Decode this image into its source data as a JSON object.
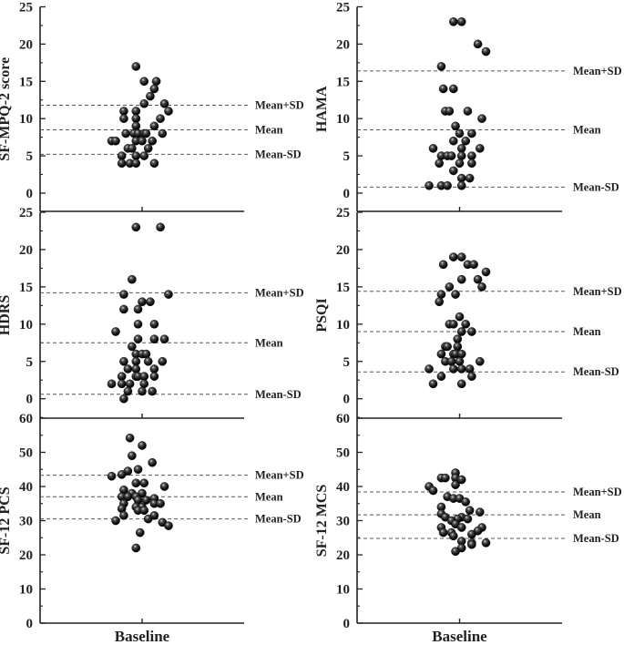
{
  "chart_data": [
    {
      "type": "scatter",
      "title": "",
      "ylabel": "SF-MPQ-2 score",
      "xlabel": "Baseline",
      "ylim": [
        -2.45,
        25
      ],
      "yticks": [
        0,
        5,
        10,
        15,
        20,
        25
      ],
      "ref_lines": [
        {
          "label": "Mean+SD",
          "value": 11.8
        },
        {
          "label": "Mean",
          "value": 8.5
        },
        {
          "label": "Mean-SD",
          "value": 5.2
        }
      ],
      "points": [
        [
          -0.03,
          17
        ],
        [
          0.01,
          15
        ],
        [
          0.07,
          15
        ],
        [
          0.06,
          14
        ],
        [
          0.04,
          13
        ],
        [
          0.01,
          12
        ],
        [
          0.11,
          12
        ],
        [
          -0.09,
          11
        ],
        [
          -0.03,
          11
        ],
        [
          0.13,
          11
        ],
        [
          -0.09,
          10
        ],
        [
          -0.03,
          10
        ],
        [
          0.09,
          10
        ],
        [
          -0.03,
          9
        ],
        [
          0.06,
          9
        ],
        [
          -0.08,
          8
        ],
        [
          -0.04,
          8
        ],
        [
          -0.02,
          8
        ],
        [
          0.01,
          8
        ],
        [
          0.02,
          8
        ],
        [
          0.1,
          8
        ],
        [
          -0.15,
          7
        ],
        [
          -0.13,
          7
        ],
        [
          -0.03,
          7
        ],
        [
          0,
          7
        ],
        [
          0.05,
          7
        ],
        [
          -0.07,
          6
        ],
        [
          -0.05,
          6
        ],
        [
          0.03,
          6
        ],
        [
          -0.1,
          5
        ],
        [
          -0.03,
          5
        ],
        [
          0.01,
          5
        ],
        [
          -0.1,
          4
        ],
        [
          -0.06,
          4
        ],
        [
          -0.03,
          4
        ],
        [
          0.06,
          4
        ]
      ]
    },
    {
      "type": "scatter",
      "title": "",
      "ylabel": "HAMA",
      "xlabel": "Baseline",
      "ylim": [
        -2.45,
        25
      ],
      "yticks": [
        0,
        5,
        10,
        15,
        20,
        25
      ],
      "ref_lines": [
        {
          "label": "Mean+SD",
          "value": 16.4
        },
        {
          "label": "Mean",
          "value": 8.5
        },
        {
          "label": "Mean-SD",
          "value": 0.8
        }
      ],
      "points": [
        [
          -0.03,
          23
        ],
        [
          0.01,
          23
        ],
        [
          0.09,
          20
        ],
        [
          0.13,
          19
        ],
        [
          -0.09,
          17
        ],
        [
          -0.08,
          14
        ],
        [
          -0.03,
          14
        ],
        [
          -0.07,
          11
        ],
        [
          -0.05,
          11
        ],
        [
          0.04,
          11
        ],
        [
          0.11,
          10
        ],
        [
          -0.02,
          9
        ],
        [
          0,
          8
        ],
        [
          0.06,
          8
        ],
        [
          -0.03,
          7
        ],
        [
          0.03,
          7
        ],
        [
          -0.13,
          6
        ],
        [
          0.01,
          6
        ],
        [
          0.1,
          6
        ],
        [
          -0.09,
          5
        ],
        [
          -0.06,
          5
        ],
        [
          -0.04,
          5
        ],
        [
          0.01,
          5
        ],
        [
          0.06,
          5
        ],
        [
          -0.1,
          4
        ],
        [
          0,
          4
        ],
        [
          0.06,
          4
        ],
        [
          -0.03,
          3
        ],
        [
          0.01,
          2
        ],
        [
          0.05,
          2
        ],
        [
          -0.15,
          1
        ],
        [
          -0.09,
          1
        ],
        [
          -0.06,
          1
        ],
        [
          0.01,
          1
        ]
      ]
    },
    {
      "type": "scatter",
      "title": "",
      "ylabel": "HDRS",
      "xlabel": "Baseline",
      "ylim": [
        -2.6,
        25
      ],
      "yticks": [
        0,
        5,
        10,
        15,
        20,
        25
      ],
      "ref_lines": [
        {
          "label": "Mean+SD",
          "value": 14.2
        },
        {
          "label": "Mean",
          "value": 7.5
        },
        {
          "label": "Mean-SD",
          "value": 0.6
        }
      ],
      "points": [
        [
          -0.03,
          23
        ],
        [
          0.09,
          23
        ],
        [
          -0.05,
          16
        ],
        [
          -0.09,
          14
        ],
        [
          0.13,
          14
        ],
        [
          0,
          13
        ],
        [
          0.04,
          13
        ],
        [
          -0.09,
          12
        ],
        [
          -0.02,
          12
        ],
        [
          -0.02,
          10
        ],
        [
          0.06,
          10
        ],
        [
          -0.13,
          9
        ],
        [
          -0.02,
          8
        ],
        [
          0.06,
          8
        ],
        [
          0.11,
          8
        ],
        [
          -0.05,
          7
        ],
        [
          -0.03,
          6
        ],
        [
          0,
          6
        ],
        [
          0.02,
          6
        ],
        [
          -0.09,
          5
        ],
        [
          -0.03,
          5
        ],
        [
          0.03,
          5
        ],
        [
          0.1,
          5
        ],
        [
          -0.07,
          4
        ],
        [
          -0.03,
          4
        ],
        [
          0.06,
          4
        ],
        [
          -0.1,
          3
        ],
        [
          -0.03,
          3
        ],
        [
          -0.02,
          3
        ],
        [
          0.01,
          3
        ],
        [
          0.06,
          3
        ],
        [
          -0.15,
          2
        ],
        [
          -0.1,
          2
        ],
        [
          -0.06,
          2
        ],
        [
          0.01,
          2
        ],
        [
          -0.07,
          1
        ],
        [
          0,
          1
        ],
        [
          0.05,
          1
        ],
        [
          -0.09,
          0
        ]
      ]
    },
    {
      "type": "scatter",
      "title": "",
      "ylabel": "PSQI",
      "xlabel": "Baseline",
      "ylim": [
        -2.6,
        25
      ],
      "yticks": [
        0,
        5,
        10,
        15,
        20,
        25
      ],
      "ref_lines": [
        {
          "label": "Mean+SD",
          "value": 14.4
        },
        {
          "label": "Mean",
          "value": 9.0
        },
        {
          "label": "Mean-SD",
          "value": 3.6
        }
      ],
      "points": [
        [
          -0.03,
          19
        ],
        [
          0.01,
          19
        ],
        [
          -0.08,
          18
        ],
        [
          0.04,
          18
        ],
        [
          0.07,
          18
        ],
        [
          0.13,
          17
        ],
        [
          0.01,
          16
        ],
        [
          0.09,
          16
        ],
        [
          -0.05,
          15
        ],
        [
          0.11,
          15
        ],
        [
          -0.09,
          14
        ],
        [
          -0.02,
          14
        ],
        [
          -0.1,
          13
        ],
        [
          0,
          11
        ],
        [
          -0.05,
          10
        ],
        [
          -0.03,
          10
        ],
        [
          0.03,
          10
        ],
        [
          0.01,
          9
        ],
        [
          0.06,
          9
        ],
        [
          -0.01,
          8
        ],
        [
          -0.07,
          7
        ],
        [
          -0.06,
          7
        ],
        [
          -0.01,
          7
        ],
        [
          -0.09,
          6
        ],
        [
          -0.03,
          6
        ],
        [
          -0.02,
          6
        ],
        [
          0.01,
          6
        ],
        [
          -0.07,
          5
        ],
        [
          -0.04,
          5
        ],
        [
          0,
          5
        ],
        [
          0.1,
          5
        ],
        [
          -0.15,
          4
        ],
        [
          -0.03,
          4
        ],
        [
          0.01,
          4
        ],
        [
          0.05,
          4
        ],
        [
          -0.09,
          3
        ],
        [
          0.06,
          3
        ],
        [
          -0.13,
          2
        ],
        [
          0.01,
          2
        ]
      ]
    },
    {
      "type": "scatter",
      "title": "",
      "ylabel": "SF-12 PCS",
      "xlabel": "Baseline",
      "ylim": [
        0,
        60
      ],
      "yticks": [
        0,
        10,
        20,
        30,
        40,
        50,
        60
      ],
      "ref_lines": [
        {
          "label": "Mean+SD",
          "value": 43.3
        },
        {
          "label": "Mean",
          "value": 37.0
        },
        {
          "label": "Mean-SD",
          "value": 30.5
        }
      ],
      "points": [
        [
          -0.06,
          54.2
        ],
        [
          0,
          52
        ],
        [
          -0.05,
          49
        ],
        [
          0.05,
          47
        ],
        [
          -0.02,
          45
        ],
        [
          -0.07,
          44.5
        ],
        [
          -0.1,
          43.5
        ],
        [
          -0.15,
          43
        ],
        [
          -0.03,
          41
        ],
        [
          0.01,
          41
        ],
        [
          0.11,
          40
        ],
        [
          -0.09,
          39
        ],
        [
          -0.05,
          38
        ],
        [
          0,
          38
        ],
        [
          -0.1,
          37
        ],
        [
          -0.07,
          37
        ],
        [
          -0.03,
          37
        ],
        [
          0.06,
          36.5
        ],
        [
          -0.02,
          36
        ],
        [
          0.02,
          36
        ],
        [
          -0.09,
          35
        ],
        [
          0.06,
          35
        ],
        [
          0.09,
          35
        ],
        [
          -0.03,
          34
        ],
        [
          0,
          34
        ],
        [
          -0.1,
          33.5
        ],
        [
          -0.02,
          33
        ],
        [
          0.01,
          33
        ],
        [
          -0.09,
          31.5
        ],
        [
          0.06,
          31.5
        ],
        [
          0.03,
          30.5
        ],
        [
          -0.13,
          30
        ],
        [
          0.1,
          29.5
        ],
        [
          0.13,
          28.5
        ],
        [
          -0.01,
          26.5
        ],
        [
          -0.03,
          22
        ]
      ]
    },
    {
      "type": "scatter",
      "title": "",
      "ylabel": "SF-12 MCS",
      "xlabel": "Baseline",
      "ylim": [
        0,
        60
      ],
      "yticks": [
        0,
        10,
        20,
        30,
        40,
        50,
        60
      ],
      "ref_lines": [
        {
          "label": "Mean+SD",
          "value": 38.4
        },
        {
          "label": "Mean",
          "value": 31.7
        },
        {
          "label": "Mean-SD",
          "value": 24.8
        }
      ],
      "points": [
        [
          -0.02,
          44
        ],
        [
          -0.09,
          42.5
        ],
        [
          -0.07,
          42.5
        ],
        [
          -0.02,
          42.5
        ],
        [
          0.01,
          42
        ],
        [
          -0.02,
          40.5
        ],
        [
          -0.15,
          40
        ],
        [
          -0.13,
          38.8
        ],
        [
          -0.06,
          37
        ],
        [
          -0.03,
          36.5
        ],
        [
          0,
          36.5
        ],
        [
          0.03,
          35.5
        ],
        [
          -0.09,
          34
        ],
        [
          0.05,
          33
        ],
        [
          0.1,
          32.5
        ],
        [
          -0.09,
          32
        ],
        [
          -0.07,
          31
        ],
        [
          0.01,
          31
        ],
        [
          -0.01,
          30.5
        ],
        [
          0.04,
          30.5
        ],
        [
          -0.04,
          30
        ],
        [
          -0.02,
          29
        ],
        [
          -0.09,
          28
        ],
        [
          0.01,
          28
        ],
        [
          0.11,
          28
        ],
        [
          0.09,
          27
        ],
        [
          -0.08,
          26.5
        ],
        [
          -0.04,
          26.5
        ],
        [
          0.06,
          26
        ],
        [
          -0.03,
          25.5
        ],
        [
          0.01,
          24
        ],
        [
          0.06,
          23.5
        ],
        [
          0.13,
          23.5
        ],
        [
          0.06,
          23
        ],
        [
          0.01,
          22
        ],
        [
          -0.02,
          21
        ]
      ]
    }
  ],
  "colors": {
    "axis": "#222222",
    "marker": "#111111",
    "highlight": "#d8d8d8",
    "ref_line": "#555555"
  }
}
